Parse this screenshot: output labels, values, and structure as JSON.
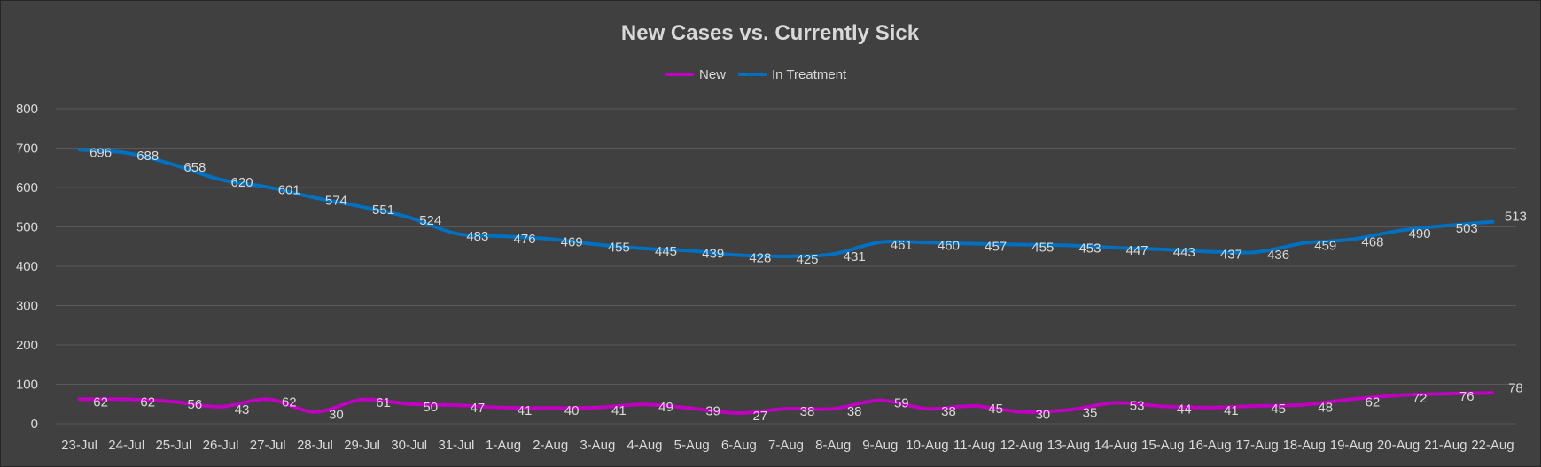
{
  "chart_data": {
    "type": "line",
    "title": "New Cases vs. Currently Sick",
    "xlabel": "",
    "ylabel": "",
    "ylim": [
      0,
      800
    ],
    "yticks": [
      0,
      100,
      200,
      300,
      400,
      500,
      600,
      700,
      800
    ],
    "grid": true,
    "legend_position": "top",
    "categories": [
      "23-Jul",
      "24-Jul",
      "25-Jul",
      "26-Jul",
      "27-Jul",
      "28-Jul",
      "29-Jul",
      "30-Jul",
      "31-Jul",
      "1-Aug",
      "2-Aug",
      "3-Aug",
      "4-Aug",
      "5-Aug",
      "6-Aug",
      "7-Aug",
      "8-Aug",
      "9-Aug",
      "10-Aug",
      "11-Aug",
      "12-Aug",
      "13-Aug",
      "14-Aug",
      "15-Aug",
      "16-Aug",
      "17-Aug",
      "18-Aug",
      "19-Aug",
      "20-Aug",
      "21-Aug",
      "22-Aug"
    ],
    "series": [
      {
        "name": "New",
        "color": "#c000c0",
        "values": [
          62,
          62,
          56,
          43,
          62,
          30,
          61,
          50,
          47,
          41,
          40,
          41,
          49,
          39,
          27,
          38,
          38,
          59,
          38,
          45,
          30,
          35,
          53,
          44,
          41,
          45,
          48,
          62,
          72,
          76,
          78
        ]
      },
      {
        "name": "In Treatment",
        "color": "#0070c0",
        "values": [
          696,
          688,
          658,
          620,
          601,
          574,
          551,
          524,
          483,
          476,
          469,
          455,
          445,
          439,
          428,
          425,
          431,
          461,
          460,
          457,
          455,
          453,
          447,
          443,
          437,
          436,
          459,
          468,
          490,
          503,
          513
        ]
      }
    ]
  }
}
